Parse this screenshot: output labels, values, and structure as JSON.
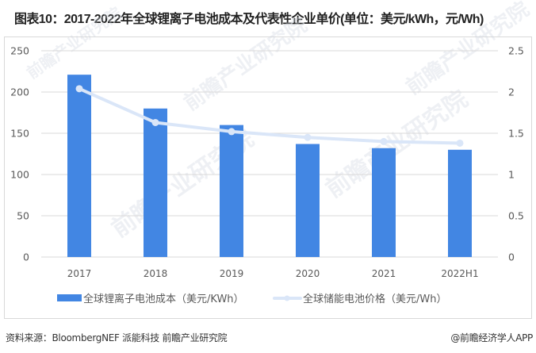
{
  "title": "图表10：2017-2022年全球锂离子电池成本及代表性企业单价(单位：美元/kWh，元/Wh)",
  "footer": {
    "source": "资料来源：BloombergNEF 派能科技 前瞻产业研究院",
    "credit": "@前瞻经济学人APP"
  },
  "watermark": "前瞻产业研究院",
  "colors": {
    "bar": "#4286E3",
    "line": "#DAE6F8",
    "grid": "#D9D9D9",
    "text": "#595959"
  },
  "chart_data": {
    "type": "bar+line",
    "title": "图表10：2017-2022年全球锂离子电池成本及代表性企业单价(单位：美元/kWh，元/Wh)",
    "categories": [
      "2017",
      "2018",
      "2019",
      "2020",
      "2021",
      "2022H1"
    ],
    "series": [
      {
        "name": "全球锂离子电池成本（美元/KWh）",
        "type": "bar",
        "axis": "left",
        "values": [
          221,
          180,
          160,
          137,
          132,
          130
        ]
      },
      {
        "name": "全球储能电池价格（美元/Wh）",
        "type": "line",
        "axis": "right",
        "values": [
          2.04,
          1.63,
          1.52,
          1.45,
          1.4,
          1.38
        ]
      }
    ],
    "y_left": {
      "ticks": [
        "0",
        "50",
        "100",
        "150",
        "200",
        "250"
      ],
      "ylim": [
        0,
        250
      ]
    },
    "y_right": {
      "ticks": [
        "0",
        "0.5",
        "1",
        "1.5",
        "2",
        "2.5"
      ],
      "ylim": [
        0,
        2.5
      ]
    },
    "grid": true,
    "legend_position": "bottom",
    "xlabel": "",
    "ylabel": ""
  }
}
